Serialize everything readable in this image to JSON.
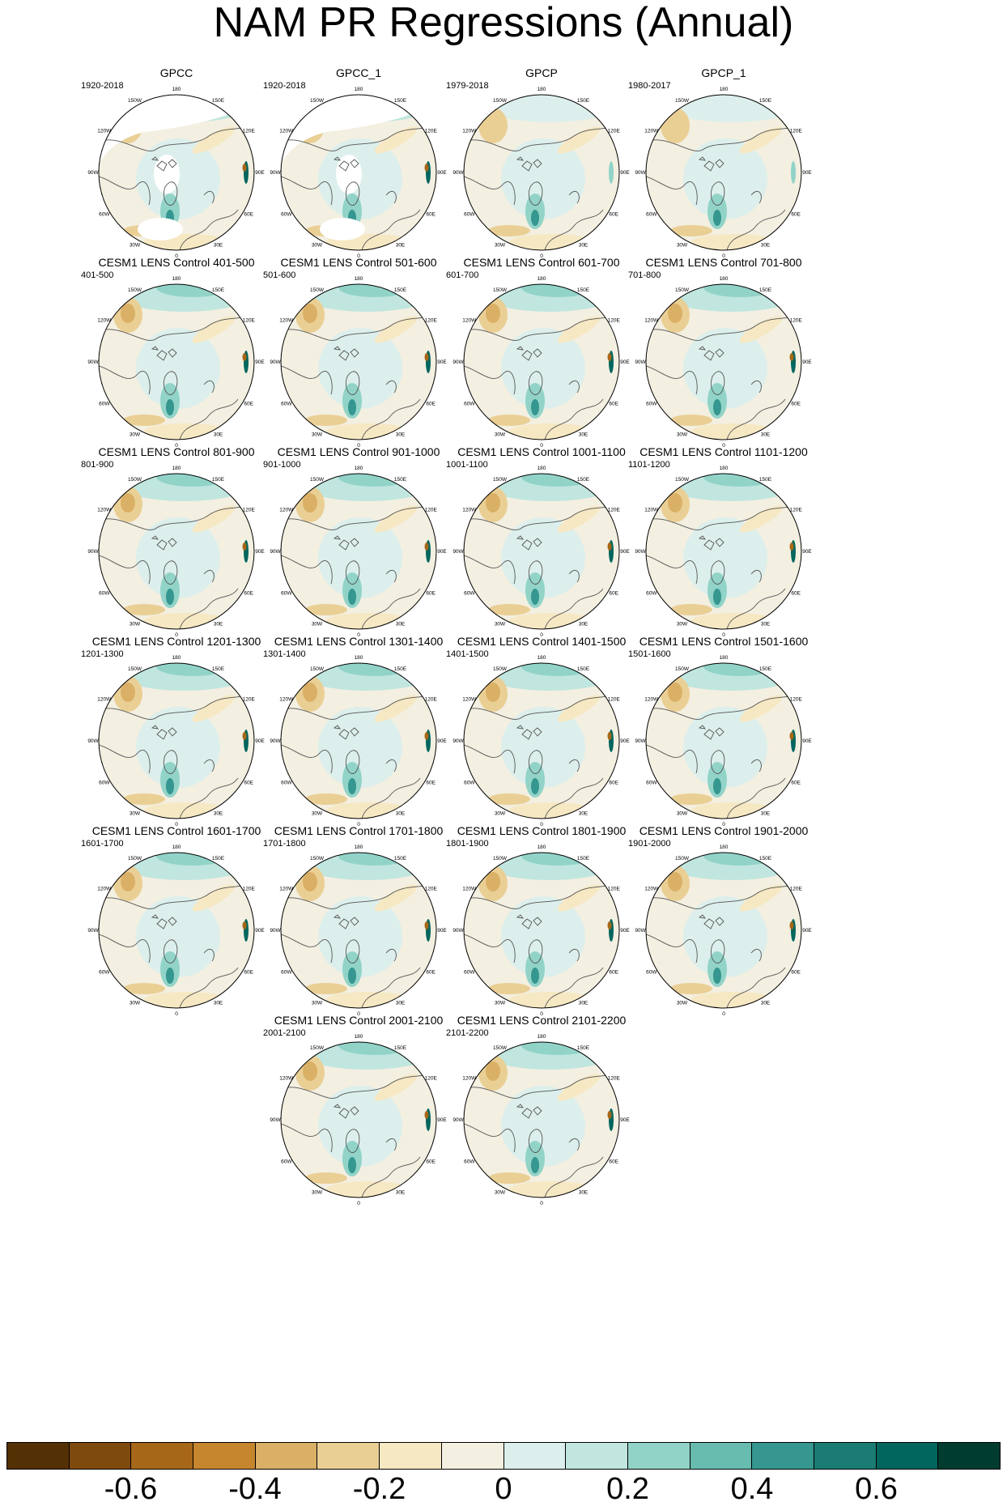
{
  "title": "NAM PR Regressions (Annual)",
  "lon_labels": [
    "180",
    "150E",
    "120E",
    "90E",
    "60E",
    "30E",
    "0",
    "30W",
    "60W",
    "90W",
    "120W",
    "150W"
  ],
  "panels": [
    {
      "title": "GPCC",
      "period": "1920-2018",
      "obs": true,
      "sign": 1
    },
    {
      "title": "GPCC_1",
      "period": "1920-2018",
      "obs": true,
      "sign": 1
    },
    {
      "title": "GPCP",
      "period": "1979-2018",
      "obs": false,
      "sign": 0.6
    },
    {
      "title": "GPCP_1",
      "period": "1980-2017",
      "obs": false,
      "sign": 0.6
    },
    {
      "title": "CESM1 LENS Control 401-500",
      "period": "401-500",
      "obs": false,
      "sign": 1
    },
    {
      "title": "CESM1 LENS Control 501-600",
      "period": "501-600",
      "obs": false,
      "sign": 1
    },
    {
      "title": "CESM1 LENS Control 601-700",
      "period": "601-700",
      "obs": false,
      "sign": 1
    },
    {
      "title": "CESM1 LENS Control 701-800",
      "period": "701-800",
      "obs": false,
      "sign": 1
    },
    {
      "title": "CESM1 LENS Control 801-900",
      "period": "801-900",
      "obs": false,
      "sign": 1
    },
    {
      "title": "CESM1 LENS Control 901-1000",
      "period": "901-1000",
      "obs": false,
      "sign": 1
    },
    {
      "title": "CESM1 LENS Control 1001-1100",
      "period": "1001-1100",
      "obs": false,
      "sign": 1
    },
    {
      "title": "CESM1 LENS Control 1101-1200",
      "period": "1101-1200",
      "obs": false,
      "sign": 1
    },
    {
      "title": "CESM1 LENS Control 1201-1300",
      "period": "1201-1300",
      "obs": false,
      "sign": 1
    },
    {
      "title": "CESM1 LENS Control 1301-1400",
      "period": "1301-1400",
      "obs": false,
      "sign": 1
    },
    {
      "title": "CESM1 LENS Control 1401-1500",
      "period": "1401-1500",
      "obs": false,
      "sign": 1
    },
    {
      "title": "CESM1 LENS Control 1501-1600",
      "period": "1501-1600",
      "obs": false,
      "sign": 1
    },
    {
      "title": "CESM1 LENS Control 1601-1700",
      "period": "1601-1700",
      "obs": false,
      "sign": 1
    },
    {
      "title": "CESM1 LENS Control 1701-1800",
      "period": "1701-1800",
      "obs": false,
      "sign": 1
    },
    {
      "title": "CESM1 LENS Control 1801-1900",
      "period": "1801-1900",
      "obs": false,
      "sign": 1
    },
    {
      "title": "CESM1 LENS Control 1901-2000",
      "period": "1901-2000",
      "obs": false,
      "sign": 1
    },
    {
      "title": "CESM1 LENS Control 2001-2100",
      "period": "2001-2100",
      "obs": false,
      "sign": 1
    },
    {
      "title": "CESM1 LENS Control 2101-2200",
      "period": "2101-2200",
      "obs": false,
      "sign": 1
    }
  ],
  "colorbar": {
    "colors": [
      "#543005",
      "#7f4a0d",
      "#a66718",
      "#c6862e",
      "#dab066",
      "#eacf95",
      "#f6e8c3",
      "#f3efe1",
      "#dcefec",
      "#c0e6df",
      "#92d3c8",
      "#67bbaf",
      "#35978f",
      "#1a7c73",
      "#01665e",
      "#003c30"
    ],
    "labels": [
      "-0.6",
      "-0.4",
      "-0.2",
      "0",
      "0.2",
      "0.4",
      "0.6"
    ],
    "label_values": [
      -0.6,
      -0.4,
      -0.2,
      0,
      0.2,
      0.4,
      0.6
    ],
    "range": [
      -0.8,
      0.8
    ]
  }
}
